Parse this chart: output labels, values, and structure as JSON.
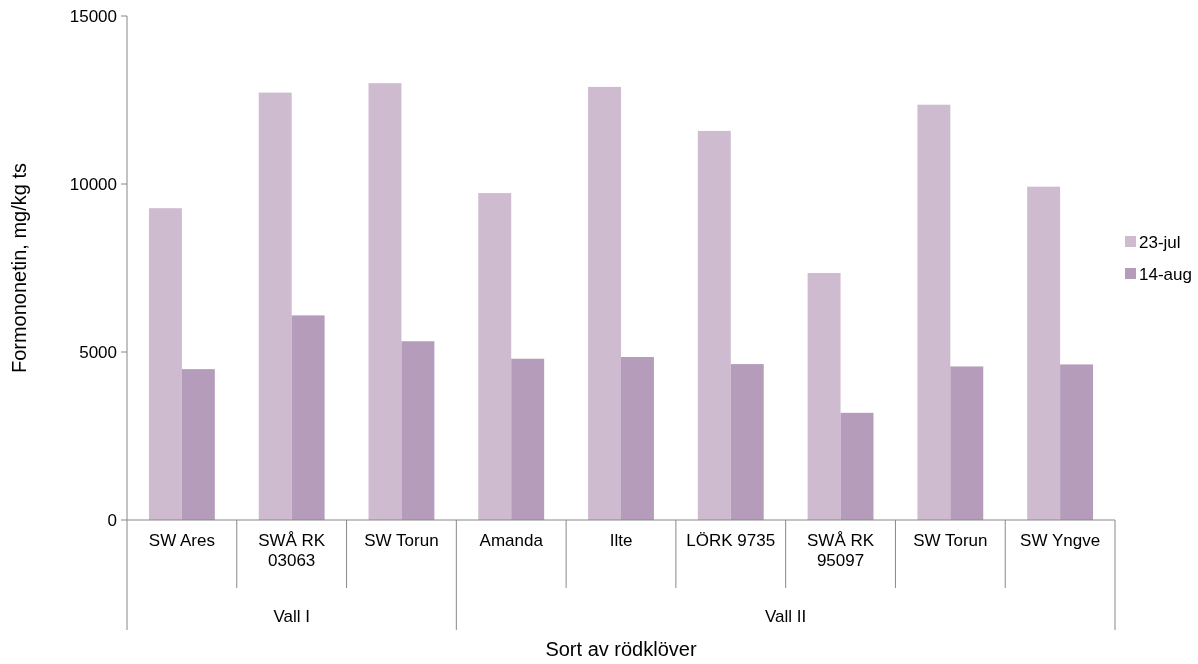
{
  "chart_data": {
    "type": "bar",
    "xlabel": "Sort av rödklöver",
    "ylabel": "Formononetin, mg/kg ts",
    "categories": [
      "SW Ares",
      "SWÅ RK 03063",
      "SW Torun",
      "Amanda",
      "Ilte",
      "LÖRK 9735",
      "SWÅ RK 95097",
      "SW Torun",
      "SW Yngve"
    ],
    "series": [
      {
        "name": "23-jul",
        "color": "#cebbcf",
        "values": [
          9280,
          12720,
          13000,
          9730,
          12890,
          11580,
          7350,
          12360,
          9920
        ]
      },
      {
        "name": "14-aug",
        "color": "#b59cba",
        "values": [
          4490,
          6090,
          5320,
          4800,
          4850,
          4640,
          3190,
          4570,
          4630
        ]
      }
    ],
    "annotations": [
      "Vall I",
      "Vall II"
    ],
    "ylim": [
      0,
      15000
    ],
    "yticks": [
      0,
      5000,
      10000,
      15000
    ],
    "grid": false,
    "legend": "right"
  }
}
